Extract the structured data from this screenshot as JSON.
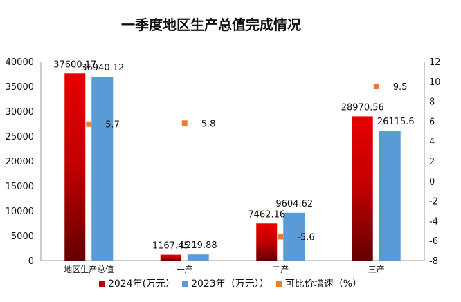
{
  "chart_data": {
    "type": "bar",
    "title": "一季度地区生产总值完成情况",
    "categories": [
      "地区生产总值",
      "一产",
      "二产",
      "三产"
    ],
    "series": [
      {
        "name": "2024年(万元）",
        "type": "bar",
        "axis": "left",
        "color": "#e00000",
        "values": [
          37600.17,
          1167.45,
          7462.16,
          28970.56
        ],
        "labels": [
          "37600.17",
          "1167.45",
          "7462.16",
          "28970.56"
        ]
      },
      {
        "name": "2023年（万元））",
        "type": "bar",
        "axis": "left",
        "color": "#5b9bd5",
        "values": [
          36940.12,
          1219.88,
          9604.62,
          26115.6
        ],
        "labels": [
          "36940.12",
          "1219.88",
          "9604.62",
          "26115.6"
        ]
      },
      {
        "name": "可比价增速（%）",
        "type": "scatter",
        "axis": "right",
        "color": "#ed7d31",
        "values": [
          5.7,
          5.8,
          -5.6,
          9.5
        ],
        "labels": [
          "5.7",
          "5.8",
          "-5.6",
          "9.5"
        ]
      }
    ],
    "ylim": [
      0,
      40000
    ],
    "yticks": [
      "0",
      "5000",
      "10000",
      "15000",
      "20000",
      "25000",
      "30000",
      "35000",
      "40000"
    ],
    "y2lim": [
      -8,
      12
    ],
    "y2ticks": [
      "-8",
      "-6",
      "-4",
      "-2",
      "0",
      "2",
      "4",
      "6",
      "8",
      "10",
      "12"
    ],
    "grid": false,
    "legend": "bottom"
  }
}
